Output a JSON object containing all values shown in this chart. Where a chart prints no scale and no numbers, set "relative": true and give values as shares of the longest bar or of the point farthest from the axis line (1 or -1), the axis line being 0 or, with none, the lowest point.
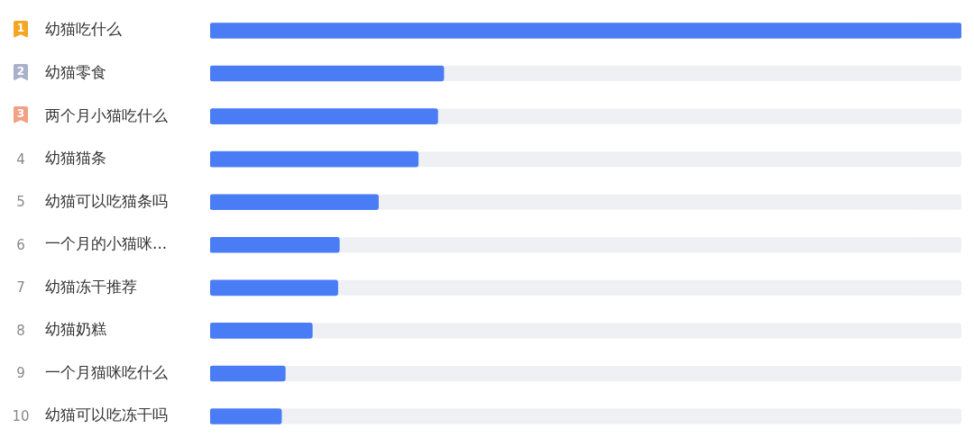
{
  "chart_data": {
    "type": "bar",
    "orientation": "horizontal",
    "relative": true,
    "categories": [
      "幼猫吃什么",
      "幼猫零食",
      "两个月小猫吃什么",
      "幼猫猫条",
      "幼猫可以吃猫条吗",
      "一个月的小猫咪...",
      "幼猫冻干推荐",
      "幼猫奶糕",
      "一个月猫咪吃什么",
      "幼猫可以吃冻干吗"
    ],
    "values": [
      1,
      0.311,
      0.303,
      0.277,
      0.224,
      0.172,
      0.17,
      0.136,
      0.1,
      0.095
    ],
    "color": "#4a7cf6",
    "annotations": [
      "1",
      "2",
      "3",
      "4",
      "5",
      "6",
      "7",
      "8",
      "9",
      "10"
    ]
  }
}
